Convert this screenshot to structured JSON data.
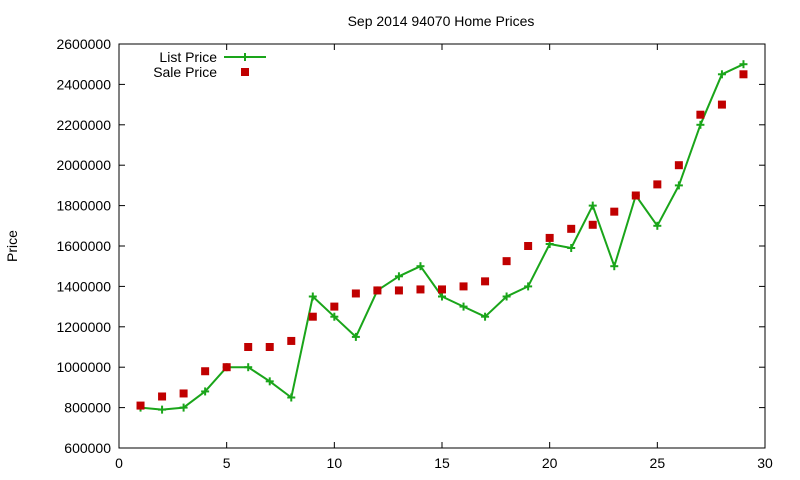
{
  "chart_data": {
    "type": "line",
    "title": "Sep 2014 94070 Home Prices",
    "xlabel": "",
    "ylabel": "Price",
    "xlim": [
      0,
      30
    ],
    "ylim": [
      600000,
      2600000
    ],
    "xticks": [
      "0",
      "5",
      "10",
      "15",
      "20",
      "25",
      "30"
    ],
    "yticks": [
      "600000",
      "800000",
      "1000000",
      "1200000",
      "1400000",
      "1600000",
      "1800000",
      "2000000",
      "2200000",
      "2400000",
      "2600000"
    ],
    "grid": false,
    "legend_position": "top-left",
    "x": [
      1,
      2,
      3,
      4,
      5,
      6,
      7,
      8,
      9,
      10,
      11,
      12,
      13,
      14,
      15,
      16,
      17,
      18,
      19,
      20,
      21,
      22,
      23,
      24,
      25,
      26,
      27,
      28,
      29
    ],
    "series": [
      {
        "name": "List Price",
        "style": "line-with-plus-markers",
        "color": "#1aa51a",
        "values": [
          800000,
          790000,
          800000,
          880000,
          1000000,
          1000000,
          930000,
          850000,
          1350000,
          1250000,
          1150000,
          1380000,
          1450000,
          1500000,
          1350000,
          1300000,
          1250000,
          1350000,
          1400000,
          1610000,
          1590000,
          1800000,
          1500000,
          1850000,
          1700000,
          1900000,
          2200000,
          2450000,
          2500000
        ]
      },
      {
        "name": "Sale Price",
        "style": "square-markers",
        "color": "#c00000",
        "values": [
          810000,
          855000,
          870000,
          980000,
          1000000,
          1100000,
          1100000,
          1130000,
          1250000,
          1300000,
          1365000,
          1380000,
          1380000,
          1385000,
          1385000,
          1400000,
          1425000,
          1525000,
          1600000,
          1640000,
          1685000,
          1705000,
          1770000,
          1850000,
          1905000,
          2000000,
          2250000,
          2300000,
          2450000
        ]
      }
    ]
  }
}
